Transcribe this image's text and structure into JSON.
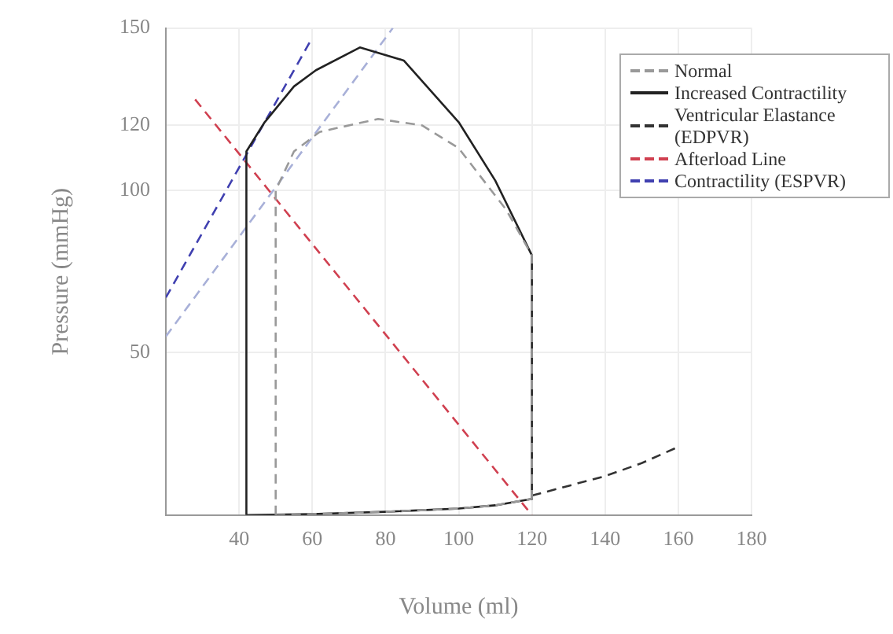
{
  "chart_data": {
    "type": "line",
    "xlabel": "Volume (ml)",
    "ylabel": "Pressure (mmHg)",
    "xlim": [
      20,
      180
    ],
    "xticks": [
      40,
      60,
      80,
      100,
      120,
      140,
      160,
      180
    ],
    "ylim": [
      0,
      150
    ],
    "yticks": [
      50,
      100,
      120,
      150
    ],
    "grid": true,
    "legend": "top right",
    "marker": "none",
    "series": [
      {
        "name": "Normal",
        "color": "#999999",
        "line_style": "dashed",
        "x": [
          50,
          50,
          55,
          62,
          78,
          90,
          100,
          113,
          120,
          120,
          null,
          50,
          60,
          80,
          100,
          110,
          120
        ],
        "values": [
          0,
          100,
          112,
          118,
          122,
          120,
          113,
          94,
          80,
          5,
          null,
          0,
          0.3,
          1,
          2,
          3,
          5
        ]
      },
      {
        "name": "Increased Contractility",
        "color": "#222222",
        "line_style": "solid",
        "x": [
          42,
          42,
          47,
          55,
          61,
          73,
          85,
          100,
          110,
          120,
          120,
          null,
          42,
          60,
          80,
          100,
          110,
          120
        ],
        "values": [
          0,
          112,
          121,
          132,
          137,
          144,
          140,
          121,
          103,
          80,
          5,
          null,
          0,
          0.3,
          1,
          2,
          3,
          5
        ]
      },
      {
        "name": "Ventricular Elastance (EDPVR)",
        "color": "#333333",
        "line_style": "dashed",
        "x": [
          120,
          130,
          140,
          150,
          160
        ],
        "values": [
          6,
          9,
          12,
          16,
          21
        ]
      },
      {
        "name": "Afterload Line",
        "color": "#d04050",
        "line_style": "dashed",
        "x": [
          28,
          120
        ],
        "values": [
          128,
          0
        ]
      },
      {
        "name": "Contractility (ESPVR)",
        "color": "#4040b0",
        "line_style": "dashed",
        "x": [
          20,
          60
        ],
        "values": [
          67,
          147
        ]
      },
      {
        "color": "#a8b0d8",
        "line_style": "dashed",
        "x": [
          20,
          82
        ],
        "values": [
          55,
          150
        ]
      }
    ]
  }
}
